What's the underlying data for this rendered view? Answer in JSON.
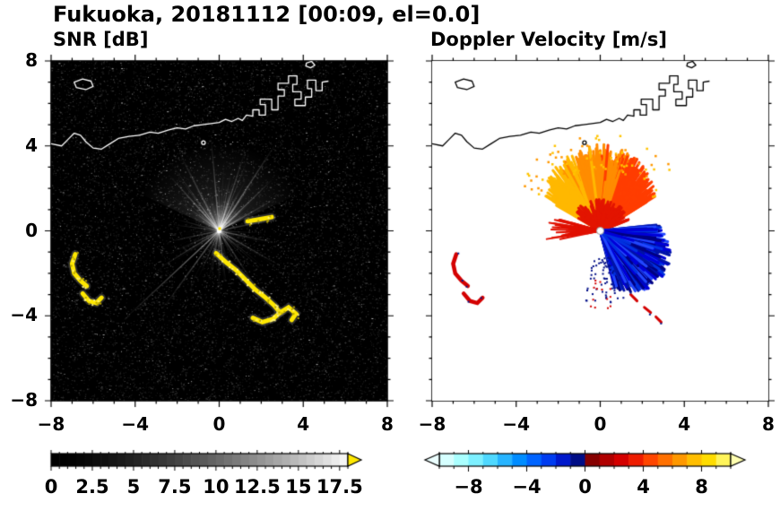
{
  "title": "Fukuoka, 20181112 [00:09, el=0.0]",
  "panels": {
    "left": {
      "title": "SNR [dB]",
      "xtick_labels": [
        "−8",
        "−4",
        "0",
        "4",
        "8"
      ],
      "xtick_values": [
        -8,
        -4,
        0,
        4,
        8
      ],
      "ytick_labels": [
        "8",
        "4",
        "0",
        "−4",
        "−8"
      ],
      "ytick_values": [
        8,
        4,
        0,
        -4,
        -8
      ],
      "colorbar": {
        "range": [
          0,
          18
        ],
        "tick_labels": [
          "0",
          "2.5",
          "5",
          "7.5",
          "10",
          "12.5",
          "15",
          "17.5"
        ],
        "tick_values": [
          0,
          2.5,
          5,
          7.5,
          10,
          12.5,
          15,
          17.5
        ],
        "colormap": "grayscale black to white",
        "arrow_color": "#ffe800"
      }
    },
    "right": {
      "title": "Doppler Velocity [m/s]",
      "xtick_labels": [
        "−8",
        "−4",
        "0",
        "4",
        "8"
      ],
      "xtick_values": [
        -8,
        -4,
        0,
        4,
        8
      ],
      "colorbar": {
        "range": [
          -10,
          10
        ],
        "tick_labels": [
          "−8",
          "−4",
          "0",
          "4",
          "8"
        ],
        "tick_values": [
          -8,
          -4,
          0,
          4,
          8
        ],
        "colors": [
          "#d6ffff",
          "#aaffff",
          "#7df0ff",
          "#4fd8ff",
          "#27b4ff",
          "#008cff",
          "#0064ff",
          "#003cf0",
          "#0018cc",
          "#000d86",
          "#860000",
          "#b00000",
          "#d40000",
          "#ee1c00",
          "#ff4600",
          "#ff7000",
          "#ff9800",
          "#ffbe00",
          "#ffdc00",
          "#fff45a"
        ],
        "arrow_left_color": "#ecffff",
        "arrow_right_color": "#ffffb0"
      }
    }
  },
  "geo": {
    "coastline": {
      "main": [
        [
          -8,
          4.1
        ],
        [
          -7.5,
          4.0
        ],
        [
          -7.2,
          4.3
        ],
        [
          -6.9,
          4.6
        ],
        [
          -6.6,
          4.5
        ],
        [
          -6.35,
          4.2
        ],
        [
          -6.0,
          3.9
        ],
        [
          -5.6,
          3.85
        ],
        [
          -5.2,
          4.1
        ],
        [
          -4.8,
          4.35
        ],
        [
          -4.3,
          4.45
        ],
        [
          -3.8,
          4.5
        ],
        [
          -3.3,
          4.65
        ],
        [
          -2.9,
          4.6
        ],
        [
          -2.4,
          4.75
        ],
        [
          -2.0,
          4.85
        ],
        [
          -1.6,
          4.8
        ],
        [
          -1.2,
          4.95
        ],
        [
          -0.8,
          5.0
        ],
        [
          -0.4,
          5.05
        ],
        [
          0.0,
          5.1
        ],
        [
          0.3,
          5.25
        ],
        [
          0.6,
          5.15
        ],
        [
          0.9,
          5.3
        ],
        [
          1.1,
          5.2
        ],
        [
          1.3,
          5.45
        ],
        [
          1.6,
          5.4
        ],
        [
          1.6,
          5.7
        ],
        [
          1.9,
          5.7
        ],
        [
          1.9,
          5.45
        ],
        [
          2.2,
          5.45
        ],
        [
          2.2,
          5.95
        ],
        [
          1.95,
          5.95
        ],
        [
          1.95,
          6.2
        ],
        [
          2.5,
          6.2
        ],
        [
          2.5,
          5.7
        ],
        [
          2.8,
          5.7
        ],
        [
          2.8,
          6.35
        ],
        [
          3.1,
          6.35
        ],
        [
          3.1,
          6.65
        ],
        [
          2.8,
          6.65
        ],
        [
          2.8,
          6.95
        ],
        [
          3.3,
          6.95
        ],
        [
          3.3,
          7.3
        ],
        [
          3.7,
          7.3
        ],
        [
          3.7,
          6.9
        ],
        [
          3.5,
          6.9
        ],
        [
          3.5,
          6.55
        ],
        [
          3.9,
          6.55
        ],
        [
          3.9,
          6.2
        ],
        [
          3.6,
          6.2
        ],
        [
          3.6,
          5.9
        ],
        [
          4.1,
          5.9
        ],
        [
          4.1,
          6.3
        ],
        [
          4.4,
          6.3
        ],
        [
          4.4,
          6.7
        ],
        [
          4.2,
          6.7
        ],
        [
          4.2,
          7.1
        ],
        [
          4.6,
          7.1
        ],
        [
          4.6,
          6.6
        ],
        [
          4.9,
          6.6
        ],
        [
          4.9,
          7.0
        ],
        [
          5.2,
          7.05
        ]
      ],
      "islands": [
        [
          [
            -6.9,
            7.0
          ],
          [
            -6.5,
            7.15
          ],
          [
            -6.1,
            7.05
          ],
          [
            -6.0,
            6.8
          ],
          [
            -6.35,
            6.65
          ],
          [
            -6.8,
            6.75
          ]
        ],
        [
          [
            4.15,
            7.9
          ],
          [
            4.4,
            7.98
          ],
          [
            4.55,
            7.8
          ],
          [
            4.35,
            7.68
          ],
          [
            4.12,
            7.76
          ]
        ]
      ],
      "dots": [
        [
          -0.75,
          4.15
        ]
      ]
    }
  },
  "chart_data": [
    {
      "type": "heatmap",
      "panel": "left",
      "title": "SNR [dB]",
      "units": "dB",
      "xlim": [
        -8,
        8
      ],
      "ylim": [
        -8,
        8
      ],
      "xticks": [
        -8,
        -4,
        0,
        4,
        8
      ],
      "yticks": [
        -8,
        -4,
        0,
        4,
        8
      ],
      "colormap": "grayscale black to white",
      "colorbar_range": [
        0,
        18
      ],
      "colorbar_ticks": [
        0,
        2.5,
        5,
        7.5,
        10,
        12.5,
        15,
        17.5
      ],
      "radar_center": [
        0,
        0
      ],
      "background": "near-zero SNR (black) with sparse speckle noise",
      "features": {
        "bright_rays": [
          {
            "angle": 137,
            "len": 6.3,
            "alpha": 0.5
          },
          {
            "angle": 126,
            "len": 4.6,
            "alpha": 0.4
          },
          {
            "angle": 148,
            "len": 3.4,
            "alpha": 0.35
          },
          {
            "angle": -57,
            "len": 5.0,
            "alpha": 0.5
          },
          {
            "angle": -44,
            "len": 3.6,
            "alpha": 0.4
          },
          {
            "angle": -95,
            "len": 4.4,
            "alpha": 0.45
          },
          {
            "angle": -117,
            "len": 4.2,
            "alpha": 0.4
          },
          {
            "angle": -132,
            "len": 3.6,
            "alpha": 0.4
          },
          {
            "angle": -72,
            "len": 4.0,
            "alpha": 0.4
          },
          {
            "angle": -30,
            "len": 3.2,
            "alpha": 0.35
          },
          {
            "angle": 30,
            "len": 3.3,
            "alpha": 0.35
          },
          {
            "angle": 12,
            "len": 2.8,
            "alpha": 0.3
          },
          {
            "angle": 57,
            "len": 3.1,
            "alpha": 0.3
          },
          {
            "angle": 83,
            "len": 2.4,
            "alpha": 0.28
          },
          {
            "angle": 100,
            "len": 2.2,
            "alpha": 0.25
          },
          {
            "angle": 168,
            "len": 2.4,
            "alpha": 0.3
          },
          {
            "angle": -165,
            "len": 2.1,
            "alpha": 0.28
          },
          {
            "angle": -12,
            "len": 2.6,
            "alpha": 0.3
          }
        ],
        "high_snr_arcs": [
          [
            [
              -6.85,
              -1.1
            ],
            [
              -7.0,
              -1.55
            ],
            [
              -6.9,
              -2.0
            ],
            [
              -6.6,
              -2.35
            ],
            [
              -6.3,
              -2.6
            ]
          ],
          [
            [
              -6.5,
              -2.95
            ],
            [
              -6.2,
              -3.3
            ],
            [
              -5.85,
              -3.4
            ],
            [
              -5.6,
              -3.15
            ]
          ],
          [
            [
              -0.15,
              -1.05
            ],
            [
              0.35,
              -1.5
            ],
            [
              0.8,
              -1.85
            ],
            [
              1.25,
              -2.3
            ],
            [
              1.7,
              -2.75
            ],
            [
              2.15,
              -3.1
            ],
            [
              2.6,
              -3.5
            ],
            [
              2.9,
              -3.85
            ],
            [
              2.55,
              -4.15
            ],
            [
              2.05,
              -4.3
            ],
            [
              1.6,
              -4.1
            ]
          ],
          [
            [
              2.9,
              -3.85
            ],
            [
              3.3,
              -3.6
            ],
            [
              3.65,
              -3.9
            ],
            [
              3.45,
              -4.2
            ]
          ],
          [
            [
              1.35,
              0.45
            ],
            [
              1.95,
              0.55
            ],
            [
              2.5,
              0.65
            ]
          ]
        ]
      }
    },
    {
      "type": "heatmap",
      "panel": "right",
      "title": "Doppler Velocity [m/s]",
      "units": "m/s",
      "xlim": [
        -8,
        8
      ],
      "ylim": [
        -8,
        8
      ],
      "xticks": [
        -8,
        -4,
        0,
        4,
        8
      ],
      "yticks": [
        -8,
        -4,
        0,
        4,
        8
      ],
      "colormap": "diverging cyan-blue-navy to dark red-orange-yellow",
      "colorbar_range": [
        -10,
        10
      ],
      "colorbar_ticks": [
        -8,
        -4,
        0,
        4,
        8
      ],
      "radar_center": [
        0,
        0
      ],
      "background": "no-data (white)",
      "angle_convention": "screen degrees, 0 = east, positive clockwise, -90 = north",
      "features": {
        "away_fan": {
          "angle_start": -150,
          "angle_end": -32,
          "reach": [
            1.8,
            4.1
          ],
          "colors": [
            "#ffb800",
            "#ff8c00",
            "#ff3d00"
          ],
          "note": "positive velocities ~3 to 8 m/s north of radar"
        },
        "red_core": {
          "angle_start": -150,
          "angle_end": -20,
          "reach": [
            0.3,
            1.5
          ],
          "color": "#e31500"
        },
        "red_west_streak": {
          "angle_start": 168,
          "angle_end": 196,
          "reach": [
            0.5,
            2.6
          ],
          "color": "#e01000"
        },
        "toward_fan": {
          "angle_start": -6,
          "angle_end": 76,
          "reach": [
            1.5,
            3.7
          ],
          "colors": [
            "#0000d8",
            "#0013a8",
            "#2247ff",
            "#000082",
            "#0031e0"
          ],
          "note": "negative velocities ~ -4 to -8 m/s southeast of radar"
        },
        "red_arcs": [
          [
            [
              -6.85,
              -1.1
            ],
            [
              -7.0,
              -1.55
            ],
            [
              -6.9,
              -2.0
            ],
            [
              -6.6,
              -2.35
            ],
            [
              -6.3,
              -2.6
            ]
          ],
          [
            [
              -6.5,
              -2.95
            ],
            [
              -6.2,
              -3.3
            ],
            [
              -5.85,
              -3.4
            ],
            [
              -5.6,
              -3.15
            ]
          ]
        ],
        "red_dashes": [
          [
            [
              1.45,
              -3.0
            ],
            [
              1.75,
              -3.3
            ]
          ],
          [
            [
              2.1,
              -3.6
            ],
            [
              2.4,
              -3.85
            ]
          ],
          [
            [
              2.65,
              -4.05
            ],
            [
              2.9,
              -4.3
            ]
          ]
        ]
      }
    }
  ]
}
